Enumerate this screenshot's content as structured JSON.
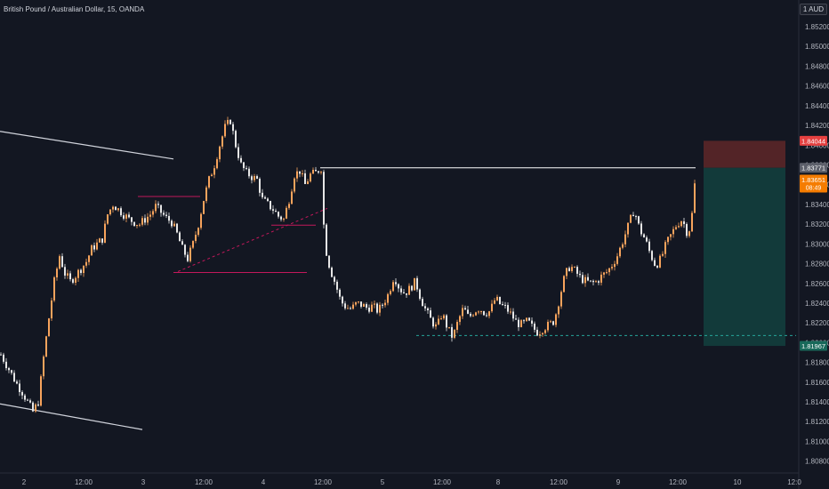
{
  "title": "British Pound / Australian Dollar, 15, OANDA",
  "unit_badge": "1 AUD",
  "colors": {
    "background": "#131722",
    "axis_text": "#b2b5be",
    "candle_up": "#f7a35c",
    "candle_down": "#e6e6e6",
    "trendline": "#d1d4dc",
    "support_line": "#c2185b",
    "stop_zone": "#5b2628",
    "target_zone": "#123c3c",
    "stop_label": "#e54040",
    "entry_label": "#5d606b",
    "current_label": "#f57c00",
    "target_label": "#18695a"
  },
  "chart_data": {
    "type": "candlestick",
    "y_ticks": [
      "1.85200",
      "1.85000",
      "1.84800",
      "1.84600",
      "1.84400",
      "1.84200",
      "1.84000",
      "1.83800",
      "1.83600",
      "1.83400",
      "1.83200",
      "1.83000",
      "1.82800",
      "1.82600",
      "1.82400",
      "1.82200",
      "1.82000",
      "1.81800",
      "1.81600",
      "1.81400",
      "1.81200",
      "1.81000",
      "1.80800"
    ],
    "x_ticks": [
      "2",
      "12:00",
      "3",
      "12:00",
      "4",
      "12:00",
      "5",
      "12:00",
      "8",
      "12:00",
      "9",
      "12:00",
      "10",
      "12:0"
    ],
    "ylim": [
      1.8068,
      1.8538
    ],
    "price_labels": {
      "stop": "1.84044",
      "entry": "1.83771",
      "current_price": "1.83651",
      "countdown": "08:49",
      "target": "1.81967"
    },
    "series_path": [
      [
        0,
        1.8188
      ],
      [
        6,
        1.8178
      ],
      [
        12,
        1.8168
      ],
      [
        18,
        1.8158
      ],
      [
        24,
        1.815
      ],
      [
        30,
        1.814
      ],
      [
        36,
        1.813
      ],
      [
        42,
        1.814
      ],
      [
        48,
        1.8185
      ],
      [
        54,
        1.8225
      ],
      [
        60,
        1.8262
      ],
      [
        66,
        1.8288
      ],
      [
        72,
        1.827
      ],
      [
        78,
        1.8262
      ],
      [
        84,
        1.8268
      ],
      [
        90,
        1.8275
      ],
      [
        96,
        1.8282
      ],
      [
        102,
        1.8295
      ],
      [
        108,
        1.83
      ],
      [
        114,
        1.8305
      ],
      [
        120,
        1.833
      ],
      [
        126,
        1.834
      ],
      [
        132,
        1.8335
      ],
      [
        138,
        1.833
      ],
      [
        144,
        1.8325
      ],
      [
        150,
        1.8322
      ],
      [
        156,
        1.832
      ],
      [
        162,
        1.8325
      ],
      [
        168,
        1.833
      ],
      [
        174,
        1.8338
      ],
      [
        180,
        1.8332
      ],
      [
        186,
        1.8326
      ],
      [
        192,
        1.8322
      ],
      [
        198,
        1.831
      ],
      [
        204,
        1.8295
      ],
      [
        210,
        1.8285
      ],
      [
        216,
        1.83
      ],
      [
        222,
        1.832
      ],
      [
        228,
        1.8345
      ],
      [
        234,
        1.8365
      ],
      [
        240,
        1.838
      ],
      [
        246,
        1.84
      ],
      [
        252,
        1.8418
      ],
      [
        258,
        1.8425
      ],
      [
        264,
        1.84
      ],
      [
        270,
        1.838
      ],
      [
        276,
        1.8372
      ],
      [
        282,
        1.8368
      ],
      [
        288,
        1.8365
      ],
      [
        294,
        1.8345
      ],
      [
        300,
        1.834
      ],
      [
        306,
        1.8335
      ],
      [
        312,
        1.8328
      ],
      [
        318,
        1.8325
      ],
      [
        324,
        1.8345
      ],
      [
        330,
        1.837
      ],
      [
        336,
        1.8374
      ],
      [
        342,
        1.836
      ],
      [
        348,
        1.837
      ],
      [
        354,
        1.8372
      ],
      [
        360,
        1.8377
      ],
      [
        364,
        1.83
      ],
      [
        370,
        1.8275
      ],
      [
        376,
        1.826
      ],
      [
        382,
        1.8242
      ],
      [
        388,
        1.8236
      ],
      [
        394,
        1.8234
      ],
      [
        400,
        1.824
      ],
      [
        406,
        1.8238
      ],
      [
        412,
        1.8235
      ],
      [
        418,
        1.8237
      ],
      [
        424,
        1.8232
      ],
      [
        430,
        1.824
      ],
      [
        436,
        1.825
      ],
      [
        442,
        1.8268
      ],
      [
        448,
        1.8255
      ],
      [
        454,
        1.825
      ],
      [
        460,
        1.8255
      ],
      [
        466,
        1.8262
      ],
      [
        472,
        1.8245
      ],
      [
        478,
        1.8232
      ],
      [
        484,
        1.8222
      ],
      [
        490,
        1.8215
      ],
      [
        496,
        1.823
      ],
      [
        502,
        1.8215
      ],
      [
        508,
        1.8205
      ],
      [
        514,
        1.8222
      ],
      [
        520,
        1.8235
      ],
      [
        526,
        1.8225
      ],
      [
        532,
        1.8232
      ],
      [
        538,
        1.8235
      ],
      [
        544,
        1.823
      ],
      [
        550,
        1.8232
      ],
      [
        556,
        1.8245
      ],
      [
        562,
        1.8238
      ],
      [
        568,
        1.8235
      ],
      [
        574,
        1.8228
      ],
      [
        580,
        1.822
      ],
      [
        586,
        1.8218
      ],
      [
        592,
        1.8222
      ],
      [
        598,
        1.8215
      ],
      [
        604,
        1.821
      ],
      [
        610,
        1.8215
      ],
      [
        616,
        1.8218
      ],
      [
        622,
        1.8222
      ],
      [
        628,
        1.8245
      ],
      [
        634,
        1.8268
      ],
      [
        640,
        1.8278
      ],
      [
        646,
        1.8272
      ],
      [
        652,
        1.8265
      ],
      [
        658,
        1.8262
      ],
      [
        664,
        1.826
      ],
      [
        670,
        1.8262
      ],
      [
        676,
        1.8268
      ],
      [
        682,
        1.8272
      ],
      [
        688,
        1.828
      ],
      [
        694,
        1.829
      ],
      [
        700,
        1.8305
      ],
      [
        706,
        1.832
      ],
      [
        712,
        1.8335
      ],
      [
        718,
        1.8315
      ],
      [
        724,
        1.8305
      ],
      [
        730,
        1.829
      ],
      [
        736,
        1.8278
      ],
      [
        742,
        1.8285
      ],
      [
        748,
        1.83
      ],
      [
        754,
        1.831
      ],
      [
        760,
        1.832
      ],
      [
        766,
        1.8325
      ],
      [
        772,
        1.831
      ],
      [
        776,
        1.832
      ],
      [
        780,
        1.836
      ],
      [
        782,
        1.8365
      ]
    ],
    "trendlines": [
      {
        "x1": 0,
        "y1": 1.8414,
        "x2": 195,
        "y2": 1.8386
      },
      {
        "x1": 0,
        "y1": 1.8138,
        "x2": 160,
        "y2": 1.8112
      }
    ],
    "support_lines": [
      {
        "x1": 155,
        "y1": 1.8348,
        "x2": 225,
        "y2": 1.8348
      },
      {
        "x1": 195,
        "y1": 1.8271,
        "x2": 345,
        "y2": 1.8271
      },
      {
        "x1": 305,
        "y1": 1.8319,
        "x2": 355,
        "y2": 1.8319
      }
    ],
    "dashed_trend": {
      "x1": 200,
      "y1": 1.8272,
      "x2": 368,
      "y2": 1.8336
    },
    "entry_line": {
      "x1": 360,
      "x2": 782,
      "y": 1.83771
    },
    "target_dashed": {
      "x1": 468,
      "x2": 895,
      "y": 1.82072
    },
    "position": {
      "x1": 791,
      "x2": 883,
      "stop": 1.84044,
      "entry": 1.83771,
      "target": 1.81967
    }
  }
}
